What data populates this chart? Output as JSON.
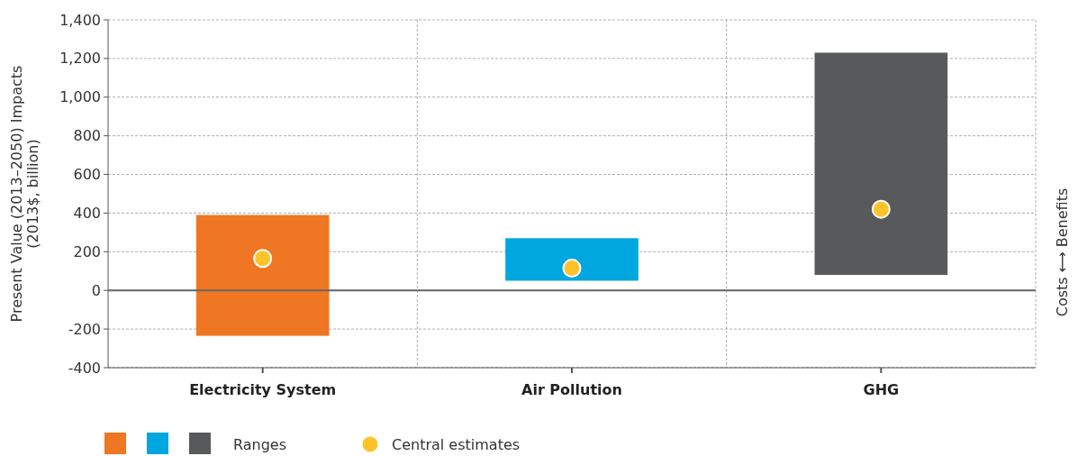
{
  "chart_data": {
    "type": "bar",
    "ylabel": "Present Value (2013–2050) Impacts\n(2013$, billion)",
    "categories": [
      "Electricity System",
      "Air Pollution",
      "GHG"
    ],
    "series": [
      {
        "name": "Ranges",
        "colors": [
          "#ef7622",
          "#00a6de",
          "#58595b"
        ],
        "base": [
          -235,
          50,
          80
        ],
        "values": [
          625,
          220,
          1150
        ]
      },
      {
        "name": "Central estimates",
        "type": "scatter",
        "color": "#fcc42a",
        "x": [
          "Electricity System",
          "Air Pollution",
          "GHG"
        ],
        "values": [
          165,
          115,
          420
        ]
      }
    ],
    "ylim": [
      -400,
      1400
    ],
    "yticks": [
      {
        "value": -400,
        "label": "-400"
      },
      {
        "value": -200,
        "label": "-200"
      },
      0,
      200,
      400,
      600,
      800,
      {
        "value": 1000,
        "label": "1,000"
      },
      {
        "value": 1200,
        "label": "1,200"
      },
      {
        "value": 1400,
        "label": "1,400"
      }
    ],
    "grid": true,
    "legend": "bottom left",
    "marker": "circle",
    "annotations": [
      "Costs ⟷ Benefits"
    ]
  }
}
